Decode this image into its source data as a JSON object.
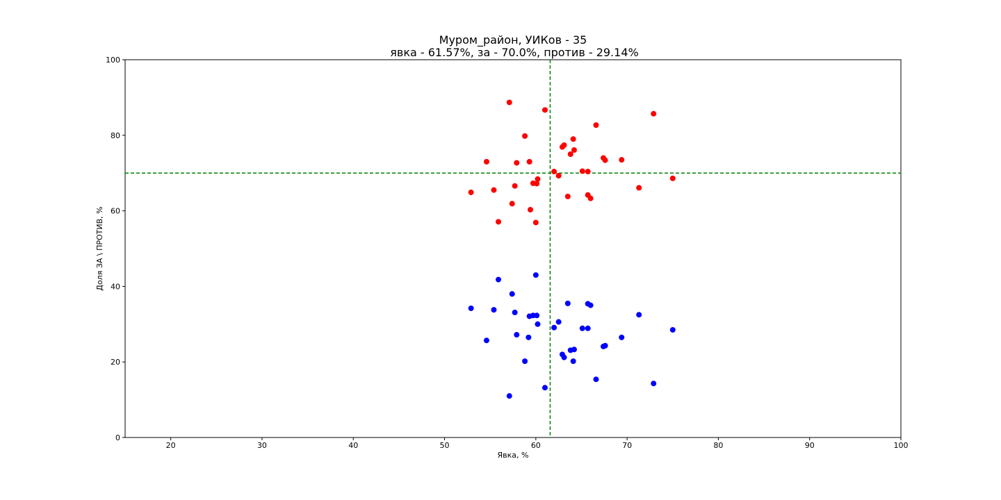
{
  "chart_data": {
    "type": "scatter",
    "title_line1": "Муром_район, УИКов - 35",
    "title_line2": "явка - 61.57%, за - 70.0%, против - 29.14%",
    "xlabel": "Явка, %",
    "ylabel": "Доля ЗА \\ ПРОТИВ, %",
    "xlim": [
      15,
      100
    ],
    "ylim": [
      0,
      100
    ],
    "xticks": [
      20,
      30,
      40,
      50,
      60,
      70,
      80,
      90,
      100
    ],
    "yticks": [
      0,
      20,
      40,
      60,
      80,
      100
    ],
    "grid": false,
    "reference_lines": {
      "x": 61.57,
      "y": 70.0,
      "color": "#008000"
    },
    "series": [
      {
        "color": "#ff0000",
        "points": [
          [
            57.1,
            88.7
          ],
          [
            61.0,
            86.7
          ],
          [
            72.9,
            85.7
          ],
          [
            66.6,
            82.7
          ],
          [
            58.8,
            79.8
          ],
          [
            64.1,
            79.0
          ],
          [
            63.1,
            77.4
          ],
          [
            62.9,
            76.9
          ],
          [
            64.2,
            76.1
          ],
          [
            63.8,
            75.0
          ],
          [
            67.4,
            74.0
          ],
          [
            67.6,
            73.4
          ],
          [
            69.4,
            73.5
          ],
          [
            54.6,
            73.0
          ],
          [
            59.3,
            73.0
          ],
          [
            57.9,
            72.7
          ],
          [
            65.1,
            70.5
          ],
          [
            65.7,
            70.4
          ],
          [
            62.0,
            70.4
          ],
          [
            62.5,
            69.3
          ],
          [
            75.0,
            68.6
          ],
          [
            60.2,
            68.4
          ],
          [
            59.7,
            67.3
          ],
          [
            60.1,
            67.2
          ],
          [
            57.7,
            66.6
          ],
          [
            71.3,
            66.1
          ],
          [
            55.4,
            65.5
          ],
          [
            52.9,
            64.9
          ],
          [
            65.7,
            64.2
          ],
          [
            63.5,
            63.8
          ],
          [
            66.0,
            63.3
          ],
          [
            57.4,
            61.9
          ],
          [
            59.4,
            60.3
          ],
          [
            55.9,
            57.1
          ],
          [
            60.0,
            56.9
          ]
        ]
      },
      {
        "color": "#0000ff",
        "points": [
          [
            60.0,
            43.0
          ],
          [
            55.9,
            41.8
          ],
          [
            57.4,
            38.0
          ],
          [
            63.5,
            35.5
          ],
          [
            65.7,
            35.4
          ],
          [
            66.0,
            35.0
          ],
          [
            52.9,
            34.2
          ],
          [
            55.4,
            33.8
          ],
          [
            57.7,
            33.1
          ],
          [
            71.3,
            32.5
          ],
          [
            60.1,
            32.3
          ],
          [
            59.7,
            32.3
          ],
          [
            59.3,
            32.1
          ],
          [
            62.5,
            30.6
          ],
          [
            60.2,
            30.0
          ],
          [
            62.0,
            29.1
          ],
          [
            65.1,
            28.9
          ],
          [
            65.7,
            28.9
          ],
          [
            75.0,
            28.5
          ],
          [
            57.9,
            27.2
          ],
          [
            59.2,
            26.5
          ],
          [
            69.4,
            26.5
          ],
          [
            54.6,
            25.7
          ],
          [
            67.6,
            24.3
          ],
          [
            67.4,
            24.1
          ],
          [
            64.2,
            23.3
          ],
          [
            63.8,
            23.1
          ],
          [
            62.9,
            22.0
          ],
          [
            63.1,
            21.2
          ],
          [
            58.8,
            20.2
          ],
          [
            64.1,
            20.2
          ],
          [
            66.6,
            15.4
          ],
          [
            72.9,
            14.3
          ],
          [
            61.0,
            13.2
          ],
          [
            57.1,
            11.0
          ]
        ]
      }
    ]
  }
}
